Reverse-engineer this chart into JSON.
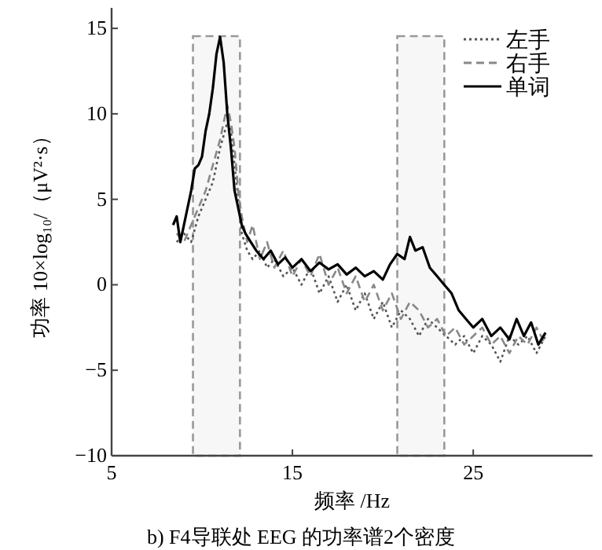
{
  "chart_data": {
    "type": "line",
    "title": "b)   F4导联处 EEG 的功率谱2个密度",
    "xlabel": "频率 /Hz",
    "ylabel": "功率 10×log₁₀/（μV²·s）",
    "xlim": [
      5,
      31.6
    ],
    "ylim": [
      -10,
      16.2
    ],
    "xticks": [
      5,
      15,
      25
    ],
    "yticks": [
      -10,
      -5,
      0,
      5,
      10,
      15
    ],
    "grid": false,
    "legend": "top right",
    "bands": [
      {
        "axis": "x",
        "from": 9.5,
        "to": 12.1,
        "color": "#999999"
      },
      {
        "axis": "x",
        "from": 20.8,
        "to": 23.4,
        "color": "#999999"
      }
    ],
    "series": [
      {
        "name": "左手",
        "color": "#555555",
        "line_style": "dotted",
        "x": [
          8.6,
          9.0,
          9.4,
          9.8,
          10.2,
          10.6,
          11.0,
          11.4,
          11.6,
          11.8,
          12.0,
          12.2,
          12.5,
          12.8,
          13.2,
          13.6,
          14,
          14.5,
          15,
          15.5,
          16,
          16.5,
          17,
          17.5,
          18,
          18.5,
          19,
          19.5,
          20,
          20.5,
          21,
          21.5,
          22,
          22.5,
          23,
          23.5,
          24,
          24.5,
          25,
          25.5,
          26,
          26.5,
          27,
          27.5,
          28,
          28.5,
          29
        ],
        "values": [
          2.5,
          3,
          2.5,
          4,
          5,
          6,
          8,
          9.5,
          9,
          7,
          5,
          3,
          2,
          1.5,
          2,
          1,
          1.5,
          0.5,
          1,
          0,
          1,
          -0.5,
          0.5,
          -1,
          0,
          -1.5,
          -0.5,
          -2,
          -1,
          -2.5,
          -1.5,
          -2,
          -3,
          -2,
          -2.5,
          -3,
          -3.5,
          -3,
          -4,
          -3,
          -3.5,
          -4.5,
          -3,
          -3.5,
          -3,
          -4,
          -3
        ]
      },
      {
        "name": "右手",
        "color": "#888888",
        "line_style": "dashed",
        "x": [
          8.6,
          9.0,
          9.4,
          9.8,
          10.2,
          10.6,
          11.0,
          11.4,
          11.6,
          11.8,
          12.0,
          12.2,
          12.5,
          12.8,
          13.2,
          13.6,
          14,
          14.5,
          15,
          15.5,
          16,
          16.5,
          17,
          17.5,
          18,
          18.5,
          19,
          19.5,
          20,
          20.5,
          21,
          21.5,
          22,
          22.5,
          23,
          23.5,
          24,
          24.5,
          25,
          25.5,
          26,
          26.5,
          27,
          27.5,
          28,
          28.5,
          29
        ],
        "values": [
          3,
          2.5,
          3.5,
          4.5,
          5.5,
          7,
          8.5,
          10.5,
          9.5,
          8,
          5.5,
          4,
          2.5,
          3.5,
          1.5,
          2.5,
          1,
          2,
          0.5,
          1.5,
          0.5,
          1.8,
          0,
          1,
          -0.5,
          0.5,
          -1,
          0,
          -1.5,
          -0.5,
          -2,
          -1,
          -1.5,
          -2.5,
          -2,
          -3,
          -2.5,
          -3.5,
          -3,
          -2.5,
          -3.5,
          -3,
          -4,
          -3,
          -3.5,
          -2.5,
          -3.5
        ]
      },
      {
        "name": "单词",
        "color": "#000000",
        "line_style": "solid",
        "x": [
          8.4,
          8.6,
          8.8,
          9.0,
          9.2,
          9.4,
          9.6,
          9.8,
          10.0,
          10.2,
          10.4,
          10.6,
          10.8,
          11.0,
          11.2,
          11.4,
          11.6,
          11.8,
          12.0,
          12.2,
          12.4,
          12.7,
          13.0,
          13.4,
          13.8,
          14.2,
          14.6,
          15.0,
          15.5,
          16.0,
          16.5,
          17,
          17.5,
          18,
          18.5,
          19,
          19.5,
          20,
          20.4,
          20.8,
          21.2,
          21.5,
          21.8,
          22.2,
          22.6,
          23,
          23.4,
          23.8,
          24.2,
          24.6,
          25,
          25.5,
          26,
          26.5,
          27,
          27.4,
          27.8,
          28.2,
          28.6,
          29
        ],
        "values": [
          3.5,
          4,
          2.5,
          3.5,
          4.5,
          5.5,
          6.8,
          7,
          7.5,
          9,
          10,
          11.5,
          13.5,
          14.5,
          13,
          10,
          8,
          5.5,
          4.5,
          3.5,
          3,
          2.5,
          2,
          1.5,
          2,
          1.2,
          1.6,
          1,
          1.5,
          0.8,
          1.3,
          0.9,
          1.2,
          0.6,
          1,
          0.5,
          0.8,
          0.3,
          1.2,
          1.8,
          1.5,
          2.8,
          2,
          2.2,
          1,
          0.5,
          0,
          -0.5,
          -1.5,
          -2,
          -2.5,
          -2,
          -3,
          -2.5,
          -3.2,
          -2,
          -3,
          -2.2,
          -3.5,
          -2.8
        ]
      }
    ]
  }
}
